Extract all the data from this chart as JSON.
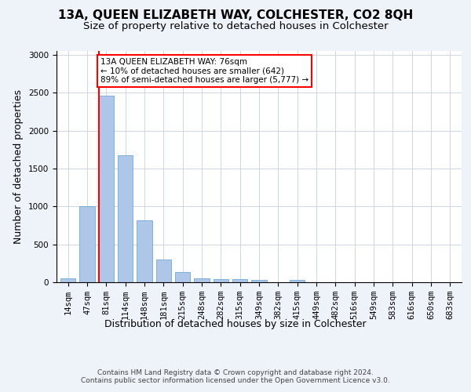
{
  "title_line1": "13A, QUEEN ELIZABETH WAY, COLCHESTER, CO2 8QH",
  "title_line2": "Size of property relative to detached houses in Colchester",
  "xlabel": "Distribution of detached houses by size in Colchester",
  "ylabel": "Number of detached properties",
  "categories": [
    "14sqm",
    "47sqm",
    "81sqm",
    "114sqm",
    "148sqm",
    "181sqm",
    "215sqm",
    "248sqm",
    "282sqm",
    "315sqm",
    "349sqm",
    "382sqm",
    "415sqm",
    "449sqm",
    "482sqm",
    "516sqm",
    "549sqm",
    "583sqm",
    "616sqm",
    "650sqm",
    "683sqm"
  ],
  "values": [
    55,
    1000,
    2460,
    1670,
    820,
    305,
    130,
    55,
    45,
    45,
    30,
    0,
    30,
    0,
    0,
    0,
    0,
    0,
    0,
    0,
    0
  ],
  "bar_color": "#aec6e8",
  "bar_edge_color": "#5a9fd4",
  "vline_x_index": 2,
  "annotation_line1": "13A QUEEN ELIZABETH WAY: 76sqm",
  "annotation_line2": "← 10% of detached houses are smaller (642)",
  "annotation_line3": "89% of semi-detached houses are larger (5,777) →",
  "annotation_box_color": "white",
  "annotation_box_edge_color": "red",
  "vline_color": "red",
  "ylim": [
    0,
    3050
  ],
  "yticks": [
    0,
    500,
    1000,
    1500,
    2000,
    2500,
    3000
  ],
  "footer_line1": "Contains HM Land Registry data © Crown copyright and database right 2024.",
  "footer_line2": "Contains public sector information licensed under the Open Government Licence v3.0.",
  "background_color": "#eef2f9",
  "plot_bg_color": "white",
  "grid_color": "#c8d0dc",
  "title_fontsize": 11,
  "subtitle_fontsize": 9.5,
  "ylabel_fontsize": 9,
  "xlabel_fontsize": 9,
  "tick_fontsize": 7.5,
  "annotation_fontsize": 7.5,
  "footer_fontsize": 6.5
}
